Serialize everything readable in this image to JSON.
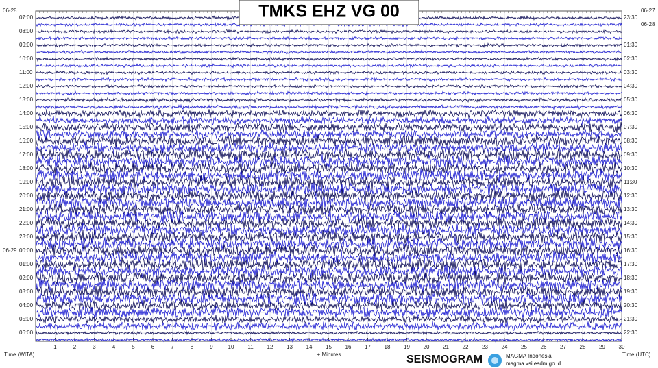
{
  "chart_data": {
    "type": "seismogram",
    "title": "TMKS EHZ VG 00",
    "left_date_top": "06-28",
    "right_date_top": "06-27",
    "right_date_second": "06-28",
    "left_date_midnight": "06-29",
    "trace_colors": [
      "#0b0b55",
      "#1a1ad2"
    ],
    "hours": [
      {
        "left": "07:00",
        "right": "23:30",
        "amplitude": 1
      },
      {
        "left": "08:00",
        "right": null,
        "amplitude": 1
      },
      {
        "left": "09:00",
        "right": "01:30",
        "amplitude": 1
      },
      {
        "left": "10:00",
        "right": "02:30",
        "amplitude": 1
      },
      {
        "left": "11:00",
        "right": "03:30",
        "amplitude": 1
      },
      {
        "left": "12:00",
        "right": "04:30",
        "amplitude": 1
      },
      {
        "left": "13:00",
        "right": "05:30",
        "amplitude": 1.2
      },
      {
        "left": "14:00",
        "right": "06:30",
        "amplitude": 2.5
      },
      {
        "left": "15:00",
        "right": "07:30",
        "amplitude": 3
      },
      {
        "left": "16:00",
        "right": "08:30",
        "amplitude": 3.5
      },
      {
        "left": "17:00",
        "right": "09:30",
        "amplitude": 4
      },
      {
        "left": "18:00",
        "right": "10:30",
        "amplitude": 4
      },
      {
        "left": "19:00",
        "right": "11:30",
        "amplitude": 4
      },
      {
        "left": "20:00",
        "right": "12:30",
        "amplitude": 4
      },
      {
        "left": "21:00",
        "right": "13:30",
        "amplitude": 4
      },
      {
        "left": "22:00",
        "right": "14:30",
        "amplitude": 4
      },
      {
        "left": "23:00",
        "right": "15:30",
        "amplitude": 4
      },
      {
        "left": "00:00",
        "right": "16:30",
        "amplitude": 4
      },
      {
        "left": "01:00",
        "right": "17:30",
        "amplitude": 4
      },
      {
        "left": "02:00",
        "right": "18:30",
        "amplitude": 4
      },
      {
        "left": "03:00",
        "right": "19:30",
        "amplitude": 4
      },
      {
        "left": "04:00",
        "right": "20:30",
        "amplitude": 3.5
      },
      {
        "left": "05:00",
        "right": "21:30",
        "amplitude": 2.5
      },
      {
        "left": "06:00",
        "right": "22:30",
        "amplitude": 1
      }
    ],
    "xlim": [
      0,
      30
    ],
    "xticks": [
      1,
      2,
      3,
      4,
      5,
      6,
      7,
      8,
      9,
      10,
      11,
      12,
      13,
      14,
      15,
      16,
      17,
      18,
      19,
      20,
      21,
      22,
      23,
      24,
      25,
      26,
      27,
      28,
      29,
      30
    ],
    "x_label_left": "Time (WITA)",
    "x_label": "+ Minutes",
    "x_label_right": "Time (UTC)",
    "logo_name": "SEISMOGRAM",
    "logo_org": "MAGMA Indonesia",
    "logo_url": "magma.vsi.esdm.go.id"
  }
}
